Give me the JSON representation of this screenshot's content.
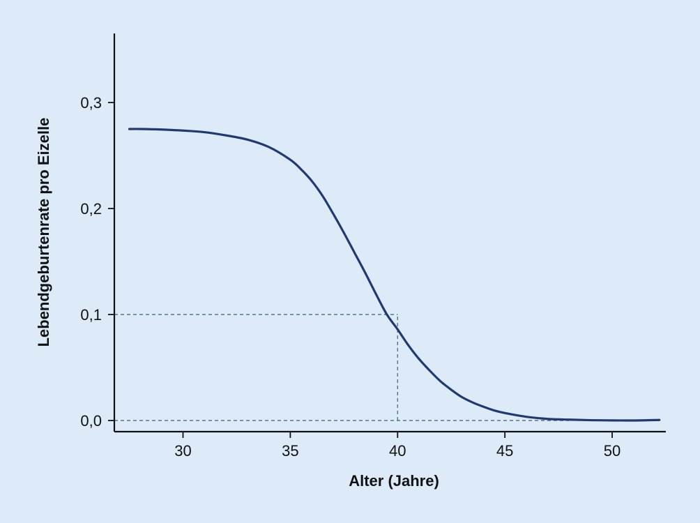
{
  "chart_data": {
    "type": "line",
    "title": "",
    "xlabel": "Alter (Jahre)",
    "ylabel": "Lebendgeburtenrate pro Eizelle",
    "xlim": [
      26.8,
      52.5
    ],
    "ylim": [
      -0.011,
      0.3
    ],
    "x_ticks": [
      {
        "value": 30,
        "label": "30"
      },
      {
        "value": 35,
        "label": "35"
      },
      {
        "value": 40,
        "label": "40"
      },
      {
        "value": 45,
        "label": "45"
      },
      {
        "value": 50,
        "label": "50"
      }
    ],
    "y_ticks": [
      {
        "value": 0.0,
        "label": "0,0"
      },
      {
        "value": 0.1,
        "label": "0,1"
      },
      {
        "value": 0.2,
        "label": "0,2"
      },
      {
        "value": 0.3,
        "label": "0,3"
      }
    ],
    "grid": false,
    "series": [
      {
        "color": "#1f3a73",
        "x": [
          27.5,
          28,
          29,
          30,
          31,
          32,
          33,
          34,
          35,
          35.5,
          36,
          36.5,
          37,
          37.5,
          38,
          38.5,
          39,
          39.5,
          40,
          40.5,
          41,
          41.5,
          42,
          42.5,
          43,
          43.5,
          44,
          44.5,
          45,
          46,
          47,
          48,
          49,
          50,
          51,
          52.2
        ],
        "y": [
          0.275,
          0.275,
          0.2745,
          0.2735,
          0.272,
          0.269,
          0.265,
          0.258,
          0.246,
          0.237,
          0.226,
          0.212,
          0.195,
          0.177,
          0.158,
          0.139,
          0.119,
          0.1,
          0.086,
          0.071,
          0.058,
          0.047,
          0.037,
          0.029,
          0.022,
          0.017,
          0.013,
          0.0095,
          0.007,
          0.0035,
          0.0015,
          0.0008,
          0.0003,
          0.0001,
          0.0,
          0.0005
        ]
      }
    ],
    "reference_lines": [
      {
        "kind": "horizontal",
        "y": 0.1,
        "x_from": 26.8,
        "x_to": 40
      },
      {
        "kind": "vertical",
        "x": 40,
        "y_from": 0.0,
        "y_to": 0.1
      },
      {
        "kind": "horizontal",
        "y": 0.0,
        "x_from": 26.8,
        "x_to": 48
      }
    ]
  },
  "colors": {
    "background": "#ddeaf8",
    "axis": "#111111",
    "curve": "#1f3a73",
    "reference": "#5a6f8a"
  }
}
